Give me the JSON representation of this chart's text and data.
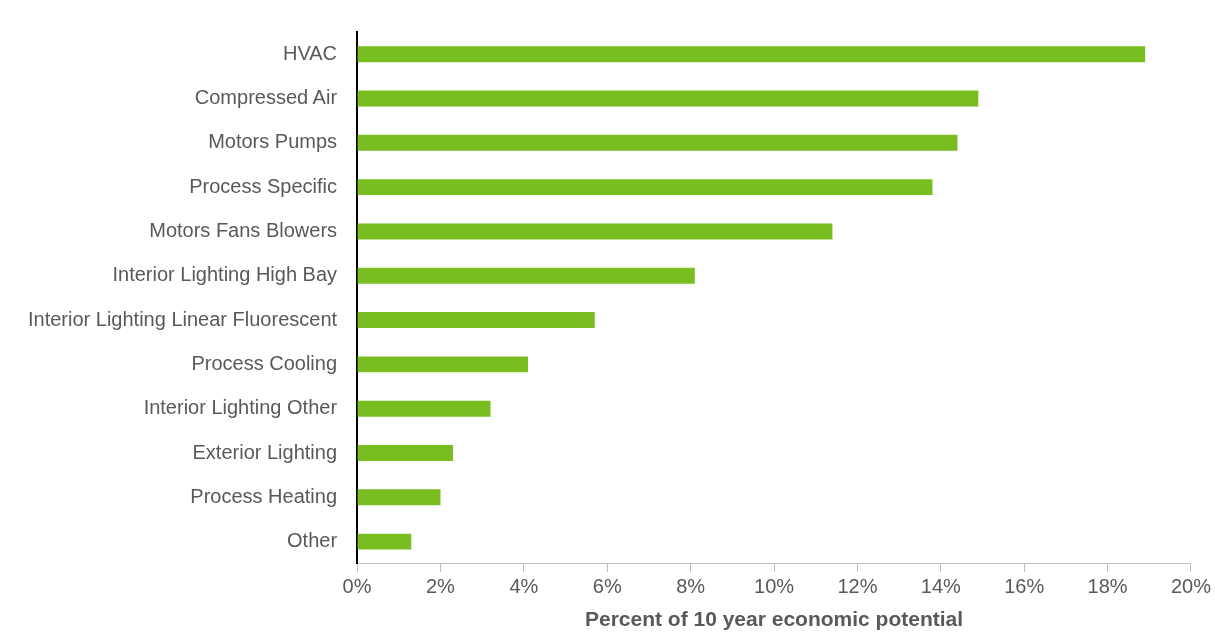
{
  "chart_data": {
    "type": "bar",
    "orientation": "horizontal",
    "xlabel": "Percent of 10 year economic potential",
    "categories": [
      "HVAC",
      "Compressed Air",
      "Motors Pumps",
      "Process Specific",
      "Motors Fans Blowers",
      "Interior Lighting High Bay",
      "Interior Lighting Linear Fluorescent",
      "Process Cooling",
      "Interior Lighting Other",
      "Exterior Lighting",
      "Process Heating",
      "Other"
    ],
    "values": [
      18.9,
      14.9,
      14.4,
      13.8,
      11.4,
      8.1,
      5.7,
      4.1,
      3.2,
      2.3,
      2.0,
      1.3
    ],
    "color": "#78be20",
    "xlim": [
      0,
      20
    ],
    "xticks": [
      {
        "value": 0,
        "label": "0%"
      },
      {
        "value": 2,
        "label": "2%"
      },
      {
        "value": 4,
        "label": "4%"
      },
      {
        "value": 6,
        "label": "6%"
      },
      {
        "value": 8,
        "label": "8%"
      },
      {
        "value": 10,
        "label": "10%"
      },
      {
        "value": 12,
        "label": "12%"
      },
      {
        "value": 14,
        "label": "14%"
      },
      {
        "value": 16,
        "label": "16%"
      },
      {
        "value": 18,
        "label": "18%"
      },
      {
        "value": 20,
        "label": "20%"
      }
    ],
    "grid": false,
    "legend": false
  }
}
